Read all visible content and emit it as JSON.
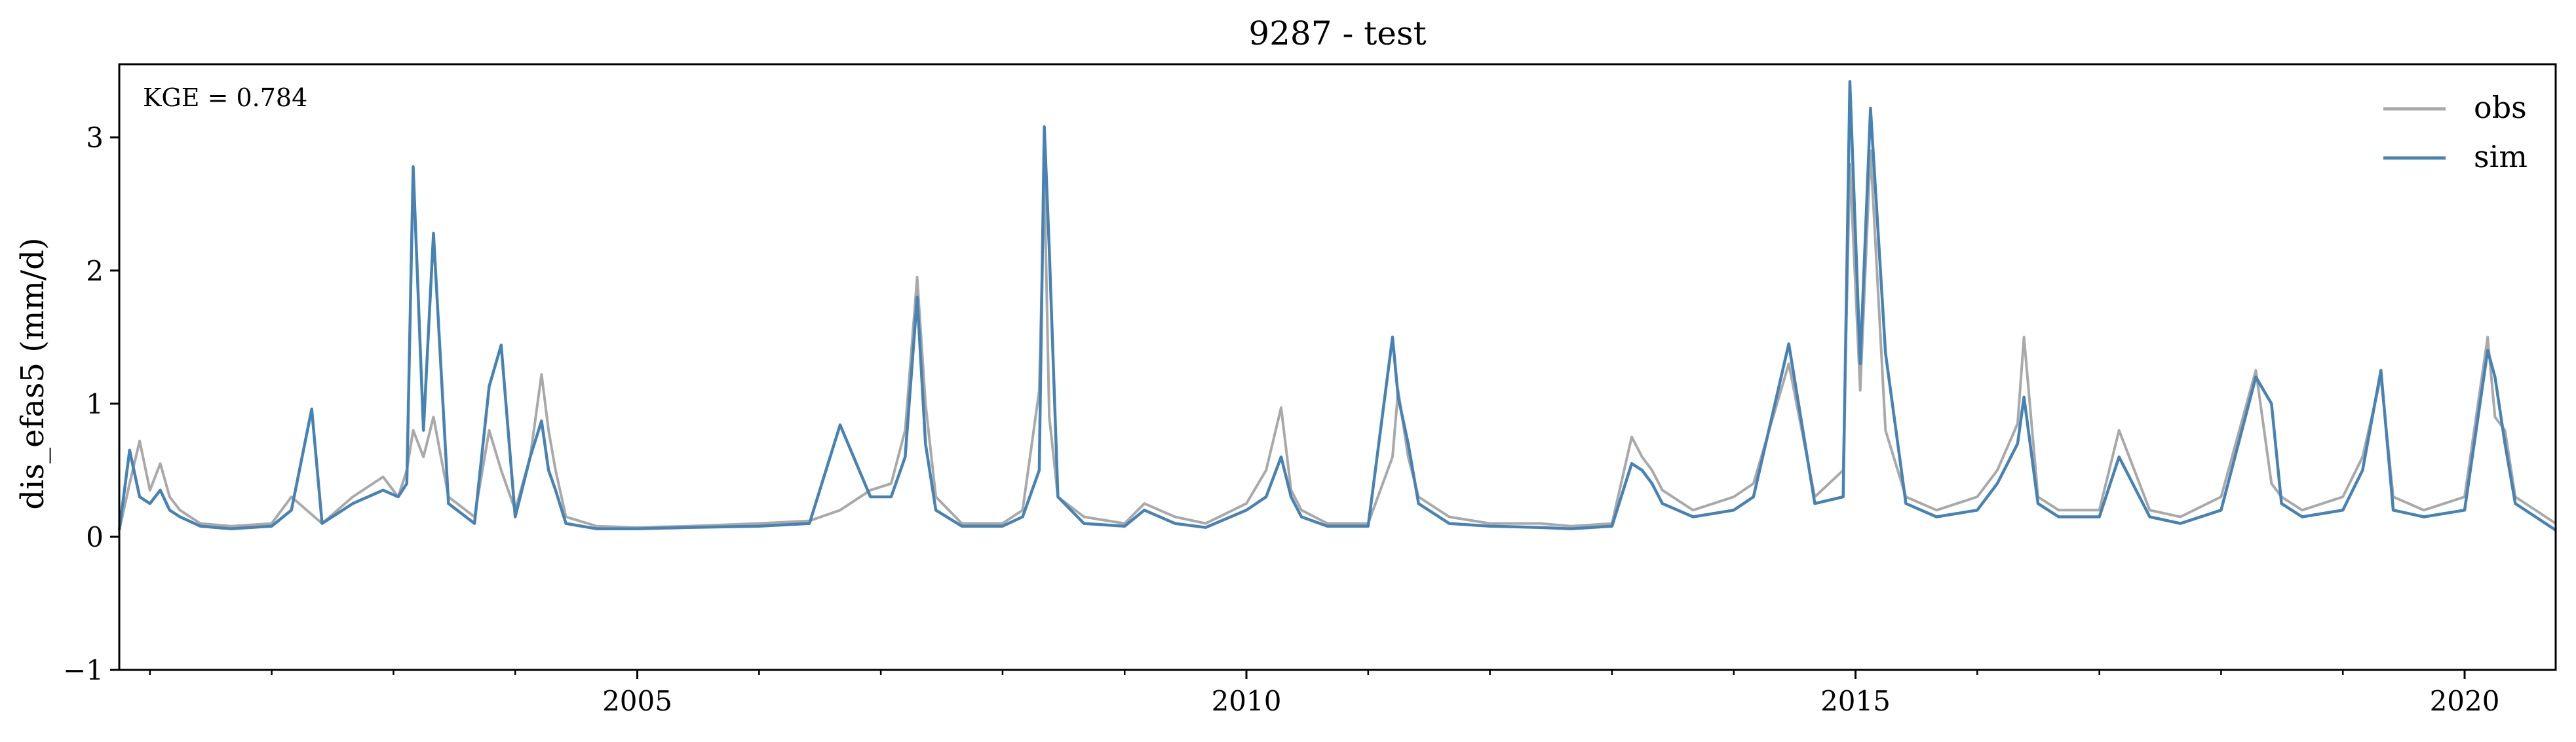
{
  "chart_data": {
    "type": "line",
    "title": "9287 - test",
    "xlabel": "",
    "ylabel": "dis_efas5 (mm/d)",
    "annotation": "KGE = 0.784",
    "xlim": [
      "2000-10-01",
      "2020-09-30"
    ],
    "ylim": [
      -1,
      3.55
    ],
    "yticks": [
      -1,
      0,
      1,
      2,
      3
    ],
    "ytick_labels": [
      "−1",
      "0",
      "1",
      "2",
      "3"
    ],
    "xticks": [
      {
        "date": "2005-01-01",
        "label": "2005"
      },
      {
        "date": "2010-01-01",
        "label": "2010"
      },
      {
        "date": "2015-01-01",
        "label": "2015"
      },
      {
        "date": "2020-01-01",
        "label": "2020"
      }
    ],
    "x_minor_ticks": [
      "2001-01-01",
      "2002-01-01",
      "2003-01-01",
      "2004-01-01",
      "2006-01-01",
      "2007-01-01",
      "2008-01-01",
      "2009-01-01",
      "2011-01-01",
      "2012-01-01",
      "2013-01-01",
      "2014-01-01",
      "2016-01-01",
      "2017-01-01",
      "2018-01-01",
      "2019-01-01"
    ],
    "grid": false,
    "legend_position": "top-right",
    "series": [
      {
        "name": "obs",
        "color": "#a9a9a9",
        "x": [
          "2000-10-01",
          "2000-11-01",
          "2000-12-01",
          "2001-01-01",
          "2001-02-01",
          "2001-03-01",
          "2001-04-01",
          "2001-06-01",
          "2001-09-01",
          "2002-01-01",
          "2002-03-01",
          "2002-06-01",
          "2002-09-01",
          "2002-12-01",
          "2003-01-15",
          "2003-02-10",
          "2003-03-01",
          "2003-04-01",
          "2003-05-01",
          "2003-06-15",
          "2003-09-01",
          "2003-10-15",
          "2003-11-20",
          "2004-01-01",
          "2004-02-15",
          "2004-03-20",
          "2004-04-10",
          "2004-05-01",
          "2004-06-01",
          "2004-09-01",
          "2005-01-01",
          "2005-06-01",
          "2006-01-01",
          "2006-06-01",
          "2006-09-01",
          "2006-12-01",
          "2007-02-01",
          "2007-03-15",
          "2007-04-20",
          "2007-05-15",
          "2007-06-15",
          "2007-09-01",
          "2008-01-01",
          "2008-03-01",
          "2008-04-20",
          "2008-05-05",
          "2008-05-20",
          "2008-06-15",
          "2008-09-01",
          "2009-01-01",
          "2009-03-01",
          "2009-06-01",
          "2009-09-01",
          "2010-01-01",
          "2010-03-01",
          "2010-04-15",
          "2010-05-15",
          "2010-06-15",
          "2010-09-01",
          "2011-01-01",
          "2011-03-15",
          "2011-04-01",
          "2011-05-01",
          "2011-06-01",
          "2011-09-01",
          "2012-01-01",
          "2012-06-01",
          "2012-09-01",
          "2013-01-01",
          "2013-03-01",
          "2013-04-01",
          "2013-05-01",
          "2013-06-01",
          "2013-09-01",
          "2014-01-01",
          "2014-03-01",
          "2014-06-15",
          "2014-09-01",
          "2014-11-25",
          "2014-12-15",
          "2015-01-15",
          "2015-02-15",
          "2015-04-01",
          "2015-06-01",
          "2015-09-01",
          "2016-01-01",
          "2016-03-01",
          "2016-05-01",
          "2016-05-20",
          "2016-07-01",
          "2016-09-01",
          "2017-01-01",
          "2017-03-01",
          "2017-06-01",
          "2017-09-01",
          "2018-01-01",
          "2018-04-15",
          "2018-06-01",
          "2018-07-01",
          "2018-09-01",
          "2019-01-01",
          "2019-03-01",
          "2019-04-25",
          "2019-06-01",
          "2019-09-01",
          "2020-01-01",
          "2020-03-10",
          "2020-04-01",
          "2020-05-01",
          "2020-06-01",
          "2020-09-30"
        ],
        "values": [
          0.05,
          0.4,
          0.72,
          0.35,
          0.55,
          0.3,
          0.2,
          0.1,
          0.08,
          0.1,
          0.3,
          0.1,
          0.3,
          0.45,
          0.3,
          0.5,
          0.8,
          0.6,
          0.9,
          0.3,
          0.15,
          0.8,
          0.5,
          0.2,
          0.6,
          1.22,
          0.8,
          0.5,
          0.15,
          0.08,
          0.07,
          0.08,
          0.1,
          0.12,
          0.2,
          0.35,
          0.4,
          0.8,
          1.95,
          1.0,
          0.3,
          0.1,
          0.1,
          0.2,
          1.1,
          2.7,
          0.9,
          0.3,
          0.15,
          0.1,
          0.25,
          0.15,
          0.1,
          0.25,
          0.5,
          0.97,
          0.35,
          0.2,
          0.1,
          0.1,
          0.6,
          1.1,
          0.6,
          0.3,
          0.15,
          0.1,
          0.1,
          0.08,
          0.1,
          0.75,
          0.6,
          0.5,
          0.35,
          0.2,
          0.3,
          0.4,
          1.3,
          0.3,
          0.5,
          2.8,
          1.1,
          2.9,
          0.8,
          0.3,
          0.2,
          0.3,
          0.5,
          0.85,
          1.5,
          0.3,
          0.2,
          0.2,
          0.8,
          0.2,
          0.15,
          0.3,
          1.25,
          0.4,
          0.3,
          0.2,
          0.3,
          0.6,
          1.2,
          0.3,
          0.2,
          0.3,
          1.5,
          0.9,
          0.8,
          0.3,
          0.1
        ]
      },
      {
        "name": "sim",
        "color": "#4682b4",
        "x": [
          "2000-10-01",
          "2000-11-01",
          "2000-12-01",
          "2001-01-01",
          "2001-02-01",
          "2001-03-01",
          "2001-04-01",
          "2001-06-01",
          "2001-09-01",
          "2002-01-01",
          "2002-03-01",
          "2002-05-01",
          "2002-06-01",
          "2002-09-01",
          "2002-12-01",
          "2003-01-15",
          "2003-02-10",
          "2003-03-01",
          "2003-04-01",
          "2003-05-01",
          "2003-06-15",
          "2003-09-01",
          "2003-10-15",
          "2003-11-20",
          "2004-01-01",
          "2004-02-15",
          "2004-03-20",
          "2004-04-10",
          "2004-05-01",
          "2004-06-01",
          "2004-09-01",
          "2005-01-01",
          "2005-06-01",
          "2006-01-01",
          "2006-06-01",
          "2006-09-01",
          "2006-12-01",
          "2007-02-01",
          "2007-03-15",
          "2007-04-20",
          "2007-05-15",
          "2007-06-15",
          "2007-09-01",
          "2008-01-01",
          "2008-03-01",
          "2008-04-20",
          "2008-05-05",
          "2008-05-20",
          "2008-06-15",
          "2008-09-01",
          "2009-01-01",
          "2009-03-01",
          "2009-06-01",
          "2009-09-01",
          "2010-01-01",
          "2010-03-01",
          "2010-04-15",
          "2010-05-15",
          "2010-06-15",
          "2010-09-01",
          "2011-01-01",
          "2011-03-15",
          "2011-04-01",
          "2011-05-01",
          "2011-06-01",
          "2011-09-01",
          "2012-01-01",
          "2012-06-01",
          "2012-09-01",
          "2013-01-01",
          "2013-03-01",
          "2013-04-01",
          "2013-05-01",
          "2013-06-01",
          "2013-09-01",
          "2014-01-01",
          "2014-03-01",
          "2014-06-15",
          "2014-09-01",
          "2014-11-25",
          "2014-12-15",
          "2015-01-15",
          "2015-02-15",
          "2015-04-01",
          "2015-06-01",
          "2015-09-01",
          "2016-01-01",
          "2016-03-01",
          "2016-05-01",
          "2016-05-20",
          "2016-07-01",
          "2016-09-01",
          "2017-01-01",
          "2017-03-01",
          "2017-06-01",
          "2017-09-01",
          "2018-01-01",
          "2018-04-15",
          "2018-06-01",
          "2018-07-01",
          "2018-09-01",
          "2019-01-01",
          "2019-03-01",
          "2019-04-25",
          "2019-06-01",
          "2019-09-01",
          "2020-01-01",
          "2020-03-10",
          "2020-04-01",
          "2020-05-01",
          "2020-06-01",
          "2020-09-30"
        ],
        "values": [
          0.05,
          0.65,
          0.3,
          0.25,
          0.35,
          0.2,
          0.15,
          0.08,
          0.06,
          0.08,
          0.2,
          0.96,
          0.1,
          0.25,
          0.35,
          0.3,
          0.4,
          2.78,
          0.8,
          2.28,
          0.25,
          0.1,
          1.13,
          1.44,
          0.15,
          0.6,
          0.87,
          0.5,
          0.35,
          0.1,
          0.06,
          0.06,
          0.07,
          0.08,
          0.1,
          0.84,
          0.3,
          0.3,
          0.6,
          1.8,
          0.7,
          0.2,
          0.08,
          0.08,
          0.15,
          0.5,
          3.08,
          2.16,
          0.3,
          0.1,
          0.08,
          0.2,
          0.1,
          0.07,
          0.2,
          0.3,
          0.6,
          0.3,
          0.15,
          0.08,
          0.08,
          1.5,
          1.05,
          0.7,
          0.25,
          0.1,
          0.08,
          0.07,
          0.06,
          0.08,
          0.55,
          0.5,
          0.4,
          0.25,
          0.15,
          0.2,
          0.3,
          1.45,
          0.25,
          0.3,
          3.42,
          1.3,
          3.22,
          1.38,
          0.25,
          0.15,
          0.2,
          0.4,
          0.7,
          1.05,
          0.25,
          0.15,
          0.15,
          0.6,
          0.15,
          0.1,
          0.2,
          1.2,
          1.0,
          0.25,
          0.15,
          0.2,
          0.5,
          1.25,
          0.2,
          0.15,
          0.2,
          1.4,
          1.2,
          0.7,
          0.25,
          0.05
        ]
      }
    ]
  }
}
